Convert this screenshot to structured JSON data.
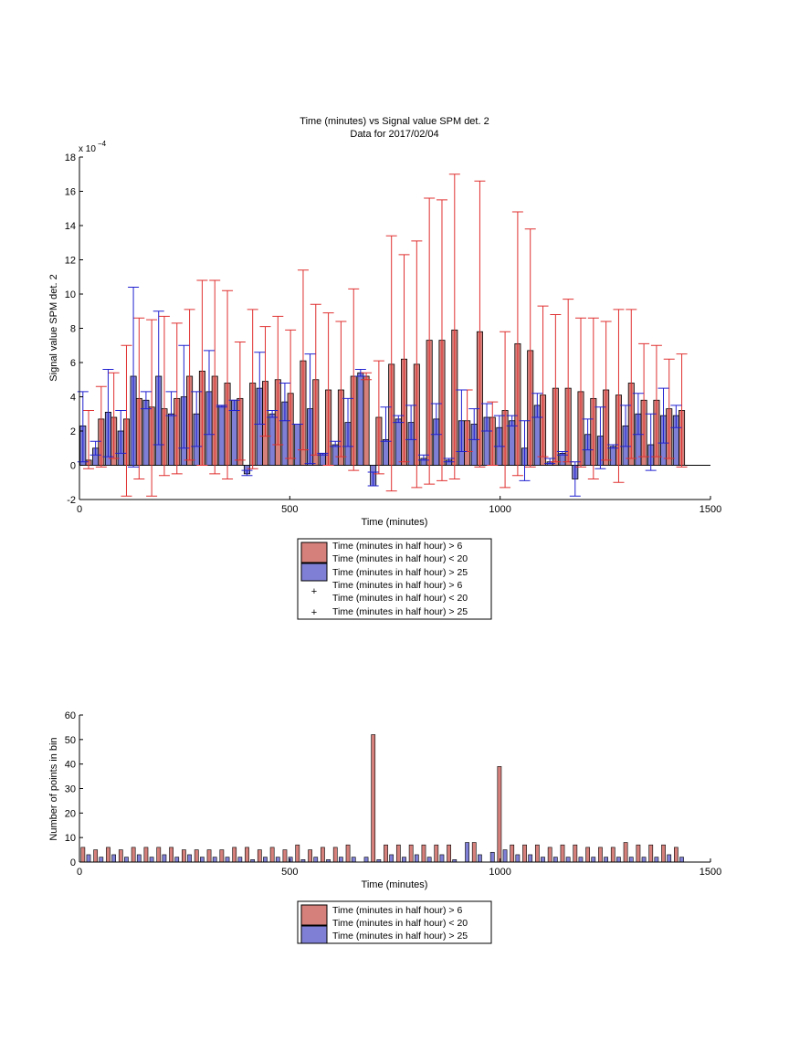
{
  "figure": {
    "title_line1": "Time (minutes) vs Signal value SPM det. 2",
    "title_line2": "Data for 2017/02/04"
  },
  "colors": {
    "red_fill": "#D5807B",
    "blue_fill": "#7F7FD5",
    "red_err": "#E03030",
    "blue_err": "#2020D0",
    "axis": "#000000"
  },
  "chart_data": [
    {
      "type": "bar",
      "subtype": "grouped bars with error bars",
      "title": "Time (minutes) vs Signal value SPM det. 2",
      "subtitle": "Data for 2017/02/04",
      "xlabel": "Time (minutes)",
      "ylabel": "Signal value SPM det. 2",
      "exponent_label": "x 10^-4",
      "xlim": [
        0,
        1500
      ],
      "ylim": [
        -2,
        18
      ],
      "xticks": [
        0,
        500,
        1000,
        1500
      ],
      "yticks": [
        -2,
        0,
        2,
        4,
        6,
        8,
        10,
        12,
        14,
        16,
        18
      ],
      "grid": false,
      "legend_position": "below",
      "legend": [
        "Time (minutes in half hour) > 6\nTime (minutes in half hour) < 20",
        "Time (minutes in half hour) > 25",
        "Time (minutes in half hour) > 6\nTime (minutes in half hour) < 20",
        "Time (minutes in half hour) > 25"
      ],
      "x": [
        15,
        45,
        75,
        105,
        135,
        165,
        195,
        225,
        255,
        285,
        315,
        345,
        375,
        405,
        435,
        465,
        495,
        525,
        555,
        585,
        615,
        645,
        675,
        705,
        735,
        765,
        795,
        825,
        855,
        885,
        915,
        945,
        975,
        1005,
        1035,
        1065,
        1095,
        1125,
        1155,
        1185,
        1215,
        1245,
        1275,
        1305,
        1335,
        1365,
        1395,
        1425
      ],
      "series": [
        {
          "name": "Time (minutes in half hour) > 6\nTime (minutes in half hour) < 20",
          "color": "#D5807B",
          "err_color": "#E03030",
          "values": [
            0.3,
            2.7,
            2.8,
            2.7,
            3.9,
            3.4,
            3.3,
            3.9,
            5.2,
            5.5,
            5.2,
            4.8,
            3.9,
            4.8,
            4.9,
            5.0,
            4.2,
            6.1,
            5.0,
            4.4,
            4.4,
            5.2,
            5.2,
            2.8,
            5.9,
            6.2,
            5.9,
            7.3,
            7.3,
            7.9,
            2.6,
            7.8,
            2.8,
            3.2,
            7.1,
            6.7,
            4.1,
            4.5,
            4.5,
            4.3,
            3.9,
            4.4,
            4.1,
            4.8,
            3.8,
            3.8,
            3.3,
            3.2
          ],
          "err_low": [
            0.0,
            0.0,
            0.0,
            0.0,
            0.0,
            0.0,
            0.0,
            0.0,
            0.0,
            0.0,
            0.0,
            0.0,
            0.0,
            0.0,
            0.0,
            0.0,
            0.0,
            0.0,
            0.0,
            0.0,
            0.0,
            0.0,
            0.0,
            0.0,
            0.0,
            0.0,
            0.0,
            0.0,
            0.0,
            0.0,
            0.0,
            0.0,
            0.0,
            0.0,
            0.0,
            0.0,
            0.0,
            0.0,
            0.0,
            0.0,
            0.0,
            0.0,
            0.0,
            0.0,
            0.0,
            0.0,
            0.0,
            0.0
          ],
          "err_high": [
            3.2,
            4.6,
            5.4,
            7.0,
            8.6,
            8.5,
            8.7,
            8.3,
            9.1,
            10.8,
            10.8,
            10.2,
            7.2,
            9.1,
            8.1,
            8.7,
            7.9,
            11.4,
            9.4,
            8.9,
            8.4,
            10.3,
            5.4,
            6.1,
            13.4,
            12.3,
            13.1,
            15.6,
            15.5,
            17.0,
            4.4,
            16.6,
            3.7,
            7.8,
            14.8,
            13.8,
            9.3,
            8.8,
            9.7,
            8.6,
            8.6,
            8.4,
            9.1,
            9.1,
            7.1,
            7.0,
            6.2,
            6.5
          ],
          "err_lower": [
            -0.2,
            -0.1,
            0.4,
            -1.8,
            -0.8,
            -1.8,
            -0.6,
            -0.5,
            0.3,
            0.0,
            -0.5,
            -0.8,
            0.3,
            -0.2,
            1.7,
            1.2,
            0.4,
            0.9,
            0.6,
            0.0,
            0.5,
            -0.3,
            5.0,
            -0.5,
            -1.5,
            0.2,
            -1.3,
            -1.1,
            -0.9,
            -0.8,
            0.8,
            -0.1,
            0.0,
            -1.3,
            -0.6,
            -0.1,
            0.5,
            0.2,
            0.2,
            -0.1,
            -0.8,
            0.3,
            -1.0,
            0.4,
            0.5,
            0.5,
            0.4,
            -0.1
          ]
        },
        {
          "name": "Time (minutes in half hour) > 25",
          "color": "#7F7FD5",
          "err_color": "#2020D0",
          "values": [
            2.3,
            1.0,
            3.1,
            2.0,
            5.2,
            3.8,
            5.2,
            3.0,
            4.0,
            3.0,
            4.3,
            3.5,
            3.8,
            -0.5,
            4.5,
            3.0,
            3.7,
            2.4,
            3.3,
            0.7,
            1.2,
            2.5,
            5.4,
            -1.2,
            1.5,
            2.7,
            2.5,
            0.4,
            2.7,
            0.3,
            2.6,
            2.4,
            2.8,
            2.2,
            2.6,
            1.0,
            3.5,
            0.2,
            0.7,
            -0.8,
            1.8,
            1.7,
            1.1,
            2.3,
            3.0,
            1.2,
            2.9,
            2.9
          ],
          "err_high": [
            4.3,
            1.4,
            5.6,
            3.2,
            10.4,
            4.3,
            9.0,
            4.3,
            7.0,
            4.3,
            6.7,
            3.5,
            3.8,
            -0.3,
            6.6,
            3.2,
            4.8,
            2.4,
            6.5,
            0.7,
            1.4,
            3.9,
            5.6,
            -0.4,
            3.4,
            2.9,
            3.5,
            0.6,
            3.6,
            0.4,
            4.4,
            3.3,
            3.6,
            2.9,
            2.9,
            2.6,
            4.2,
            0.4,
            0.8,
            0.2,
            2.7,
            3.4,
            1.2,
            3.5,
            4.2,
            3.0,
            4.5,
            3.5
          ],
          "err_low": [
            0.2,
            0.6,
            0.5,
            0.7,
            -0.1,
            3.3,
            1.2,
            2.9,
            1.0,
            1.1,
            1.8,
            3.4,
            3.2,
            -0.6,
            2.4,
            2.8,
            2.6,
            2.4,
            0.1,
            0.6,
            1.1,
            1.1,
            5.2,
            -1.2,
            1.4,
            2.5,
            1.5,
            0.3,
            1.8,
            0.2,
            0.8,
            1.5,
            2.0,
            1.1,
            2.3,
            -0.9,
            2.8,
            0.1,
            0.6,
            -1.8,
            0.9,
            -0.2,
            1.0,
            1.1,
            1.8,
            -0.3,
            1.3,
            2.2
          ]
        }
      ]
    },
    {
      "type": "bar",
      "subtype": "grouped histogram counts",
      "xlabel": "Time (minutes)",
      "ylabel": "Number of points in bin",
      "xlim": [
        0,
        1500
      ],
      "ylim": [
        0,
        60
      ],
      "xticks": [
        0,
        500,
        1000,
        1500
      ],
      "yticks": [
        0,
        10,
        20,
        30,
        40,
        50,
        60
      ],
      "grid": false,
      "legend_position": "below",
      "legend": [
        "Time (minutes in half hour) > 6\nTime (minutes in half hour) < 20",
        "Time (minutes in half hour) > 25"
      ],
      "x": [
        15,
        45,
        75,
        105,
        135,
        165,
        195,
        225,
        255,
        285,
        315,
        345,
        375,
        405,
        435,
        465,
        495,
        525,
        555,
        585,
        615,
        645,
        675,
        705,
        735,
        765,
        795,
        825,
        855,
        885,
        915,
        945,
        975,
        1005,
        1035,
        1065,
        1095,
        1125,
        1155,
        1185,
        1215,
        1245,
        1275,
        1305,
        1335,
        1365,
        1395,
        1425
      ],
      "series": [
        {
          "name": "Time (minutes in half hour) > 6\nTime (minutes in half hour) < 20",
          "color": "#D5807B",
          "values": [
            6,
            5,
            6,
            5,
            6,
            6,
            6,
            6,
            5,
            5,
            5,
            5,
            6,
            6,
            5,
            6,
            5,
            7,
            5,
            6,
            6,
            7,
            0,
            52,
            7,
            7,
            7,
            7,
            7,
            7,
            0,
            8,
            0,
            39,
            7,
            7,
            7,
            6,
            7,
            7,
            6,
            6,
            6,
            8,
            7,
            7,
            7,
            6
          ],
          "blue_first_override": []
        },
        {
          "name": "Time (minutes in half hour) > 25",
          "color": "#7F7FD5",
          "values": [
            3,
            2,
            3,
            2,
            3,
            2,
            3,
            2,
            3,
            2,
            2,
            2,
            2,
            1,
            2,
            2,
            2,
            1,
            2,
            1,
            2,
            2,
            2,
            1,
            3,
            2,
            3,
            2,
            3,
            1,
            8,
            3,
            4,
            5,
            3,
            3,
            2,
            2,
            2,
            2,
            2,
            2,
            2,
            2,
            2,
            2,
            3,
            2
          ]
        }
      ]
    }
  ]
}
